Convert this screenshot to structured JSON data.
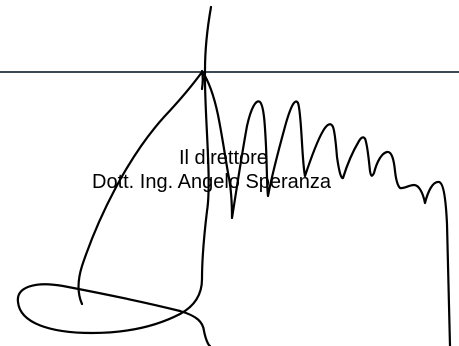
{
  "document": {
    "signature_block": {
      "title": "Il direttore",
      "name": "Dott. Ing. Angelo Speranza"
    },
    "signature_drawing": {
      "kind": "handwritten-signature",
      "ink_color": "#000000",
      "rule_color": "#3d4a52"
    }
  }
}
